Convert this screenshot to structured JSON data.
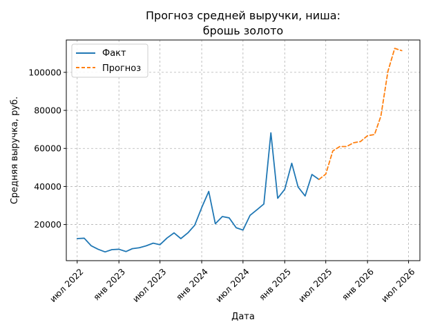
{
  "chart_data": {
    "type": "line",
    "title": [
      "Прогноз средней выручки, ниша:",
      "брошь золото"
    ],
    "xlabel": "Дата",
    "ylabel": "Средняя выручка, руб.",
    "x_ticks": [
      {
        "date": "2022-07-01",
        "label": "июл 2022"
      },
      {
        "date": "2023-01-01",
        "label": "янв 2023"
      },
      {
        "date": "2023-07-01",
        "label": "июл 2023"
      },
      {
        "date": "2024-01-01",
        "label": "янв 2024"
      },
      {
        "date": "2024-07-01",
        "label": "июл 2024"
      },
      {
        "date": "2025-01-01",
        "label": "янв 2025"
      },
      {
        "date": "2025-07-01",
        "label": "июл 2025"
      },
      {
        "date": "2026-01-01",
        "label": "янв 2026"
      },
      {
        "date": "2026-07-01",
        "label": "июл 2026"
      }
    ],
    "y_ticks": [
      {
        "value": 20000,
        "label": "20000"
      },
      {
        "value": 40000,
        "label": "40000"
      },
      {
        "value": 60000,
        "label": "60000"
      },
      {
        "value": 80000,
        "label": "80000"
      },
      {
        "value": 100000,
        "label": "100000"
      }
    ],
    "xlim": [
      "2022-05-14",
      "2026-08-20"
    ],
    "ylim": [
      1000,
      117000
    ],
    "grid": true,
    "legend_position": "top-left",
    "series": [
      {
        "name": "Факт",
        "color": "#1f77b4",
        "style": "solid",
        "points": [
          [
            "2022-07-01",
            12600
          ],
          [
            "2022-08-01",
            12800
          ],
          [
            "2022-09-01",
            8800
          ],
          [
            "2022-10-01",
            7000
          ],
          [
            "2022-11-01",
            5600
          ],
          [
            "2022-12-01",
            6800
          ],
          [
            "2023-01-01",
            7000
          ],
          [
            "2023-02-01",
            5800
          ],
          [
            "2023-03-01",
            7300
          ],
          [
            "2023-04-01",
            7800
          ],
          [
            "2023-05-01",
            8800
          ],
          [
            "2023-06-01",
            10200
          ],
          [
            "2023-07-01",
            9400
          ],
          [
            "2023-08-01",
            12900
          ],
          [
            "2023-09-01",
            15600
          ],
          [
            "2023-10-01",
            12600
          ],
          [
            "2023-11-01",
            15600
          ],
          [
            "2023-12-01",
            19600
          ],
          [
            "2024-01-01",
            28900
          ],
          [
            "2024-02-01",
            37400
          ],
          [
            "2024-03-01",
            20400
          ],
          [
            "2024-04-01",
            24200
          ],
          [
            "2024-05-01",
            23500
          ],
          [
            "2024-06-01",
            18300
          ],
          [
            "2024-07-01",
            17100
          ],
          [
            "2024-08-01",
            24800
          ],
          [
            "2024-09-01",
            27800
          ],
          [
            "2024-10-01",
            30800
          ],
          [
            "2024-11-01",
            68200
          ],
          [
            "2024-12-01",
            33800
          ],
          [
            "2025-01-01",
            38500
          ],
          [
            "2025-02-01",
            52200
          ],
          [
            "2025-03-01",
            39700
          ],
          [
            "2025-04-01",
            35000
          ],
          [
            "2025-05-01",
            46300
          ],
          [
            "2025-06-01",
            43700
          ]
        ]
      },
      {
        "name": "Прогноз",
        "color": "#ff7f0e",
        "style": "dashed",
        "points": [
          [
            "2025-06-01",
            43700
          ],
          [
            "2025-07-01",
            46500
          ],
          [
            "2025-08-01",
            58700
          ],
          [
            "2025-09-01",
            61000
          ],
          [
            "2025-10-01",
            61000
          ],
          [
            "2025-11-01",
            63000
          ],
          [
            "2025-12-01",
            63600
          ],
          [
            "2026-01-01",
            66700
          ],
          [
            "2026-02-01",
            67300
          ],
          [
            "2026-03-01",
            77000
          ],
          [
            "2026-04-01",
            100500
          ],
          [
            "2026-05-01",
            112600
          ],
          [
            "2026-06-01",
            111400
          ]
        ]
      }
    ]
  }
}
